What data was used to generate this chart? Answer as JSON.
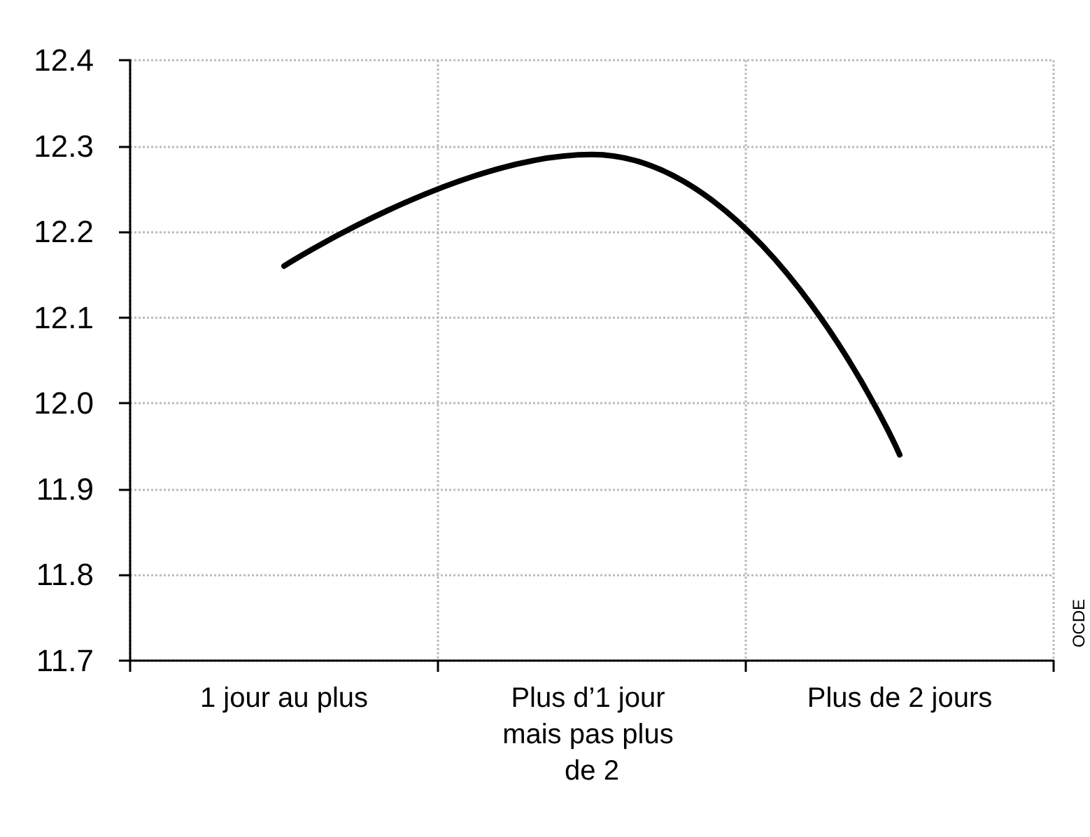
{
  "chart_data": {
    "type": "line",
    "categories": [
      "1 jour au plus",
      "Plus d’1 jour mais pas plus de 2",
      "Plus de 2 jours"
    ],
    "series": [
      {
        "color": "#000000",
        "values": [
          12.16,
          12.29,
          11.94
        ]
      }
    ],
    "ylim": [
      11.7,
      12.4
    ],
    "yticks": [
      11.7,
      11.8,
      11.9,
      {
        "value": 12,
        "label": "12.0"
      },
      12.1,
      12.2,
      12.3,
      12.4
    ],
    "grid": true,
    "marker": "none",
    "line_style": "solid",
    "annotations": [
      "OCDE"
    ]
  }
}
